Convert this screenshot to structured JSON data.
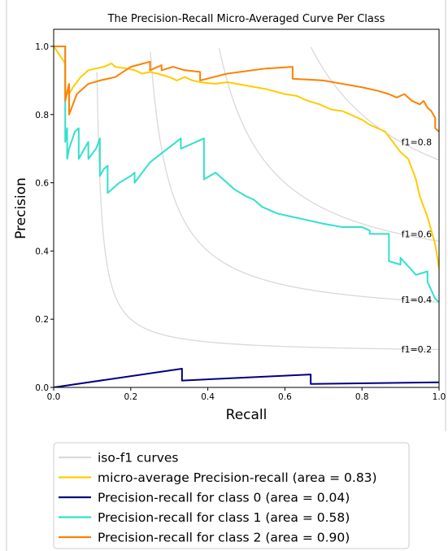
{
  "chart_data": {
    "type": "line",
    "title": "The Precision-Recall Micro-Averaged Curve Per Class",
    "xlabel": "Recall",
    "ylabel": "Precision",
    "xlim": [
      0,
      1
    ],
    "ylim": [
      0,
      1.05
    ],
    "xticks": [
      "0.0",
      "0.2",
      "0.4",
      "0.6",
      "0.8",
      "1.0"
    ],
    "yticks": [
      "0.0",
      "0.2",
      "0.4",
      "0.6",
      "0.8",
      "1.0"
    ],
    "grid": false,
    "legend_position": "below",
    "iso_f1": {
      "name": "iso-f1 curves",
      "color": "#d9d9d9",
      "levels": [
        0.2,
        0.4,
        0.6,
        0.8
      ],
      "labels": [
        "f1=0.2",
        "f1=0.4",
        "f1=0.6",
        "f1=0.8"
      ]
    },
    "series": [
      {
        "name": "micro-average Precision-recall (area = 0.83)",
        "color": "#ffcc00",
        "x": [
          0,
          0.03,
          0.03,
          0.04,
          0.05,
          0.07,
          0.09,
          0.11,
          0.13,
          0.15,
          0.16,
          0.19,
          0.21,
          0.23,
          0.25,
          0.27,
          0.3,
          0.32,
          0.34,
          0.36,
          0.38,
          0.42,
          0.45,
          0.5,
          0.55,
          0.6,
          0.63,
          0.66,
          0.69,
          0.72,
          0.75,
          0.77,
          0.8,
          0.82,
          0.84,
          0.86,
          0.88,
          0.9,
          0.92,
          0.93,
          0.94,
          0.95,
          0.96,
          0.97,
          0.98,
          0.99,
          1.0
        ],
        "y": [
          1.0,
          0.95,
          0.87,
          0.86,
          0.88,
          0.91,
          0.93,
          0.935,
          0.94,
          0.95,
          0.94,
          0.935,
          0.93,
          0.92,
          0.925,
          0.92,
          0.91,
          0.9,
          0.91,
          0.9,
          0.895,
          0.89,
          0.895,
          0.885,
          0.875,
          0.86,
          0.855,
          0.84,
          0.83,
          0.815,
          0.81,
          0.8,
          0.785,
          0.77,
          0.76,
          0.75,
          0.72,
          0.69,
          0.67,
          0.64,
          0.61,
          0.56,
          0.53,
          0.5,
          0.46,
          0.42,
          0.35
        ]
      },
      {
        "name": "Precision-recall for class 0 (area = 0.04)",
        "color": "#000080",
        "x": [
          0,
          0.333,
          0.333,
          0.667,
          0.667,
          1.0
        ],
        "y": [
          0,
          0.055,
          0.02,
          0.038,
          0.01,
          0.015
        ]
      },
      {
        "name": "Precision-recall for class 1 (area = 0.58)",
        "color": "#33e0cc",
        "x": [
          0,
          0.03,
          0.03,
          0.035,
          0.035,
          0.04,
          0.055,
          0.065,
          0.065,
          0.08,
          0.09,
          0.09,
          0.11,
          0.12,
          0.12,
          0.13,
          0.14,
          0.14,
          0.17,
          0.2,
          0.21,
          0.21,
          0.25,
          0.33,
          0.33,
          0.39,
          0.39,
          0.42,
          0.44,
          0.45,
          0.47,
          0.5,
          0.52,
          0.54,
          0.56,
          0.58,
          0.62,
          0.66,
          0.7,
          0.75,
          0.8,
          0.82,
          0.82,
          0.87,
          0.87,
          0.9,
          0.9,
          0.94,
          0.97,
          0.97,
          0.99,
          1.0
        ],
        "y": [
          1.0,
          1.0,
          0.72,
          0.76,
          0.67,
          0.7,
          0.75,
          0.76,
          0.67,
          0.7,
          0.72,
          0.67,
          0.7,
          0.73,
          0.62,
          0.64,
          0.65,
          0.57,
          0.6,
          0.62,
          0.63,
          0.6,
          0.66,
          0.73,
          0.7,
          0.73,
          0.61,
          0.63,
          0.61,
          0.6,
          0.58,
          0.56,
          0.55,
          0.53,
          0.52,
          0.51,
          0.5,
          0.49,
          0.48,
          0.47,
          0.47,
          0.46,
          0.45,
          0.45,
          0.37,
          0.36,
          0.38,
          0.33,
          0.34,
          0.31,
          0.26,
          0.25
        ]
      },
      {
        "name": "Precision-recall for class 2 (area = 0.90)",
        "color": "#ff8000",
        "x": [
          0,
          0.03,
          0.03,
          0.04,
          0.04,
          0.05,
          0.06,
          0.09,
          0.12,
          0.16,
          0.2,
          0.25,
          0.25,
          0.28,
          0.28,
          0.31,
          0.34,
          0.38,
          0.38,
          0.45,
          0.55,
          0.62,
          0.62,
          0.7,
          0.75,
          0.8,
          0.84,
          0.87,
          0.89,
          0.91,
          0.93,
          0.95,
          0.96,
          0.97,
          0.98,
          0.99,
          0.99,
          1.0
        ],
        "y": [
          1.0,
          1.0,
          0.84,
          0.89,
          0.8,
          0.83,
          0.86,
          0.89,
          0.9,
          0.91,
          0.94,
          0.955,
          0.93,
          0.945,
          0.93,
          0.94,
          0.93,
          0.925,
          0.9,
          0.92,
          0.935,
          0.94,
          0.905,
          0.9,
          0.89,
          0.88,
          0.87,
          0.86,
          0.85,
          0.86,
          0.84,
          0.83,
          0.84,
          0.82,
          0.81,
          0.79,
          0.76,
          0.75
        ]
      }
    ]
  }
}
